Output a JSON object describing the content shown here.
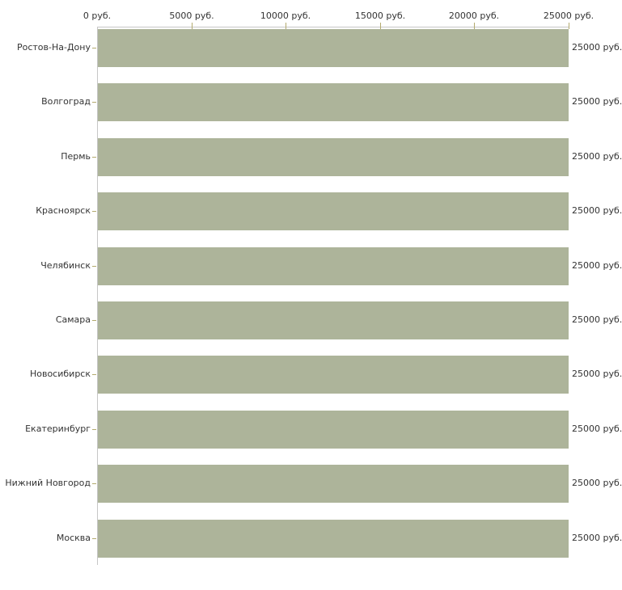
{
  "chart_data": {
    "type": "bar",
    "orientation": "horizontal",
    "title": "",
    "categories": [
      "Ростов-На-Дону",
      "Волгоград",
      "Пермь",
      "Красноярск",
      "Челябинск",
      "Самара",
      "Новосибирск",
      "Екатеринбург",
      "Нижний Новгород",
      "Москва"
    ],
    "values": [
      25000,
      25000,
      25000,
      25000,
      25000,
      25000,
      25000,
      25000,
      25000,
      25000
    ],
    "value_labels": [
      "25000 руб.",
      "25000 руб.",
      "25000 руб.",
      "25000 руб.",
      "25000 руб.",
      "25000 руб.",
      "25000 руб.",
      "25000 руб.",
      "25000 руб.",
      "25000 руб."
    ],
    "x_axis": {
      "position": "top",
      "range": [
        0,
        25000
      ],
      "ticks": [
        0,
        5000,
        10000,
        15000,
        20000,
        25000
      ],
      "tick_labels": [
        "0 руб.",
        "5000 руб.",
        "10000 руб.",
        "15000 руб.",
        "20000 руб.",
        "25000 руб."
      ]
    },
    "grid": false,
    "legend": null,
    "colors": {
      "bar": "#adb49a",
      "axis_line": "#c6c6c6",
      "tick": "#b3aa6e",
      "text": "#333333",
      "background": "#ffffff"
    }
  }
}
